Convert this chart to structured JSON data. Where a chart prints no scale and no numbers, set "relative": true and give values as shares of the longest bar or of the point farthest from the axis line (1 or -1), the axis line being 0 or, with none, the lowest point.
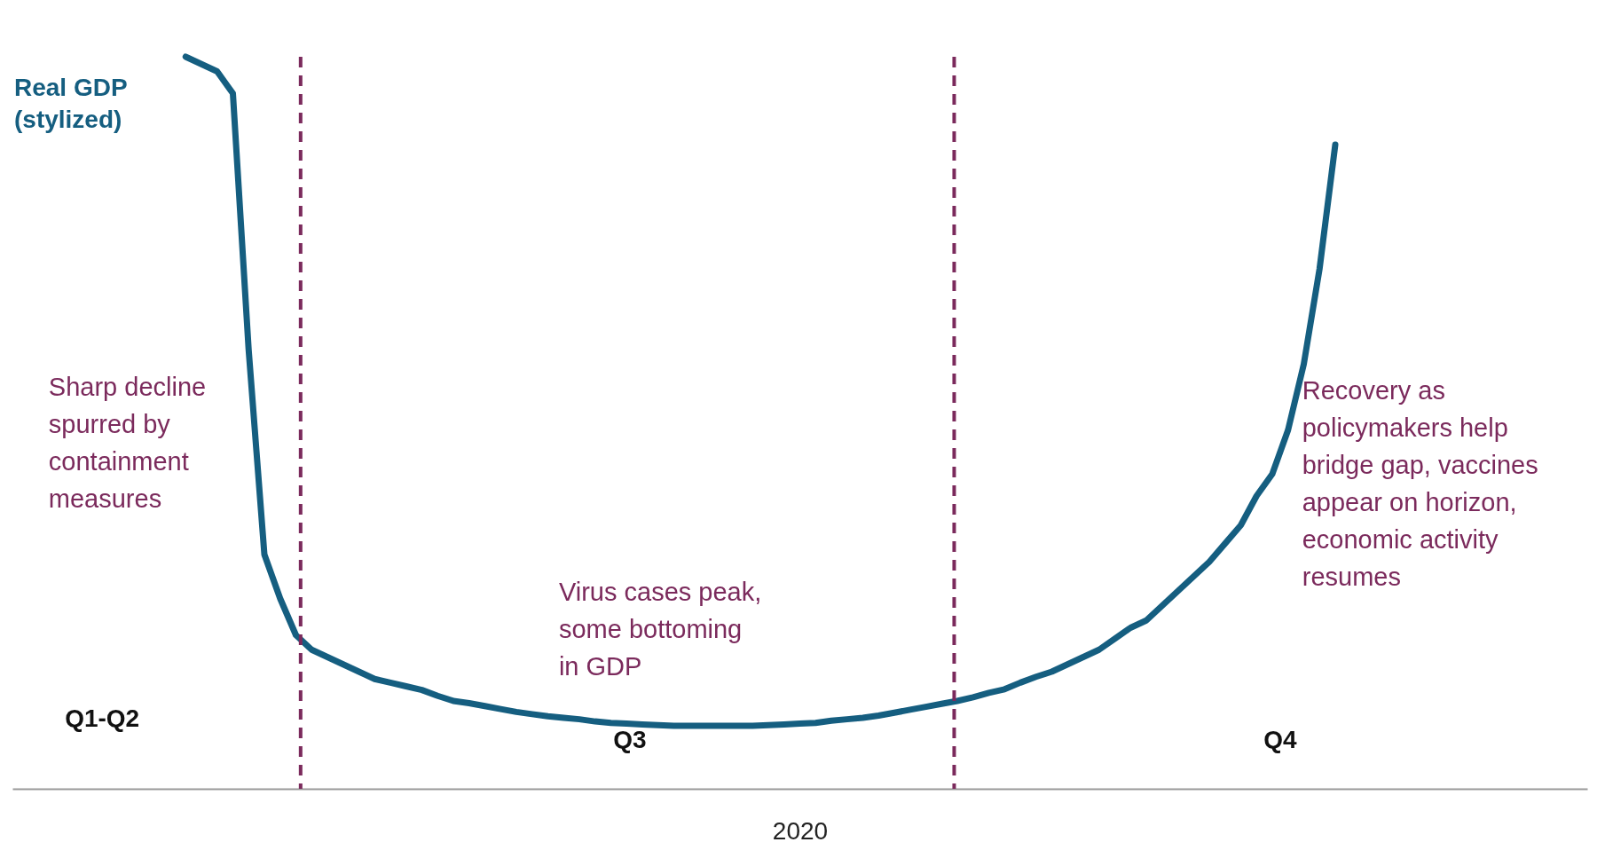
{
  "chart_data": {
    "type": "line",
    "relative": true,
    "xlabel": "2020",
    "marker": "none",
    "line_style": "solid",
    "categories": [
      null,
      null,
      null,
      null,
      null,
      null,
      null,
      null,
      null,
      null,
      null,
      null,
      null,
      null,
      null,
      null,
      null,
      null,
      null,
      null,
      null,
      null,
      null,
      null,
      null,
      null,
      null,
      null,
      null,
      null,
      null,
      null,
      null,
      null,
      null,
      null,
      null,
      null,
      null,
      null,
      null,
      null,
      null,
      null,
      null,
      null,
      null,
      null,
      null,
      null,
      null,
      null,
      null,
      null,
      null,
      null,
      null,
      null,
      null,
      null,
      null,
      null,
      null,
      null,
      null,
      null,
      null,
      null,
      null,
      null,
      null,
      null,
      null,
      null,
      null,
      null,
      null,
      null,
      null,
      null,
      null,
      null,
      null,
      null,
      null,
      null,
      null,
      null,
      null,
      null,
      null,
      null,
      null,
      null,
      null,
      null,
      null,
      null,
      null,
      null,
      null
    ],
    "series": [
      {
        "name": "Real GDP\n(stylized)",
        "color": "#155e80",
        "values": [
          null,
          null,
          null,
          null,
          null,
          null,
          null,
          null,
          null,
          null,
          null,
          1.0,
          0.99,
          0.98,
          0.95,
          0.6,
          0.32,
          0.26,
          0.21,
          0.19,
          0.18,
          0.17,
          0.16,
          0.15,
          0.145,
          0.14,
          0.135,
          0.127,
          0.12,
          0.117,
          0.113,
          0.109,
          0.105,
          0.102,
          0.099,
          0.097,
          0.095,
          0.092,
          0.09,
          0.089,
          0.088,
          0.087,
          0.086,
          0.086,
          0.086,
          0.086,
          0.086,
          0.086,
          0.087,
          0.088,
          0.089,
          0.09,
          0.093,
          0.095,
          0.097,
          0.1,
          0.104,
          0.108,
          0.112,
          0.116,
          0.12,
          0.125,
          0.131,
          0.136,
          0.145,
          0.153,
          0.16,
          0.17,
          0.18,
          0.19,
          0.205,
          0.22,
          0.23,
          0.25,
          0.27,
          0.29,
          0.31,
          0.335,
          0.36,
          0.4,
          0.43,
          0.49,
          0.58,
          0.71,
          0.88,
          null,
          null,
          null,
          null,
          null,
          null,
          null,
          null,
          null,
          null,
          null,
          null,
          null,
          null,
          null,
          null
        ]
      }
    ],
    "annotations": [
      "Sharp decline\nspurred by\ncontainment\nmeasures",
      "Virus cases peak,\nsome bottoming\nin GDP",
      "Recovery as\npolicymakers help\nbridge gap, vaccines\nappear on horizon,\neconomic activity\nresumes",
      "Q1-Q2",
      "Q3",
      "Q4"
    ]
  }
}
